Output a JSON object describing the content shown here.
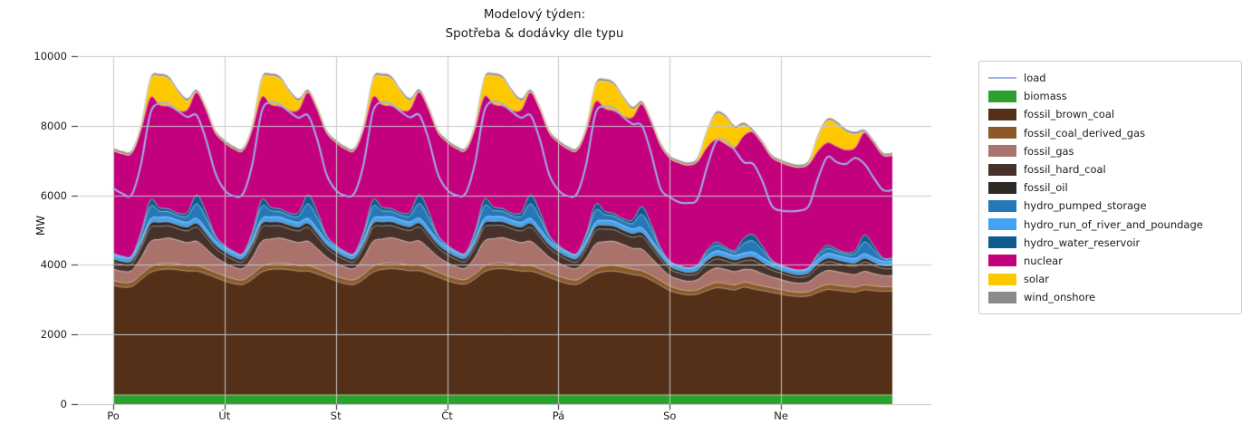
{
  "title": {
    "line1": "Modelový týden:",
    "line2": "Spotřeba & dodávky dle typu"
  },
  "chart_data": {
    "type": "area",
    "stacked": true,
    "title": "Modelový týden: Spotřeba & dodávky dle typu",
    "ylabel": "MW",
    "ylim": [
      0,
      10000
    ],
    "yticks": [
      0,
      2000,
      4000,
      6000,
      8000,
      10000
    ],
    "xtick_hours": [
      0,
      24,
      48,
      72,
      96,
      120,
      144
    ],
    "xtick_labels": [
      "Po",
      "Út",
      "St",
      "Čt",
      "Pá",
      "So",
      "Ne"
    ],
    "x_start_hour": 0,
    "x_step_hours": 2,
    "x_end_hour": 168,
    "grid": true,
    "grid_color": "#c7c7c7",
    "legend_position": "right",
    "stack_order": [
      "biomass",
      "fossil_brown_coal",
      "fossil_coal_derived_gas",
      "fossil_gas",
      "fossil_hard_coal",
      "fossil_oil",
      "hydro_run_of_river_and_poundage",
      "hydro_pumped_storage",
      "hydro_water_reservoir",
      "nuclear",
      "solar",
      "wind_onshore"
    ],
    "load_series": {
      "name": "load",
      "type": "line",
      "color": "#9fb1e8",
      "values": [
        6200,
        6050,
        6020,
        6900,
        8350,
        8650,
        8620,
        8420,
        8250,
        8300,
        7600,
        6650,
        6150,
        5980,
        6050,
        6900,
        8400,
        8680,
        8600,
        8400,
        8230,
        8300,
        7600,
        6600,
        6150,
        5990,
        6060,
        6910,
        8400,
        8670,
        8610,
        8410,
        8240,
        8310,
        7610,
        6610,
        6160,
        6000,
        6060,
        6920,
        8410,
        8690,
        8620,
        8400,
        8230,
        8300,
        7600,
        6600,
        6150,
        5980,
        6050,
        6900,
        8350,
        8550,
        8500,
        8250,
        8050,
        8000,
        7200,
        6200,
        5950,
        5800,
        5780,
        5900,
        6800,
        7550,
        7580,
        7300,
        6950,
        6900,
        6400,
        5700,
        5560,
        5540,
        5560,
        5700,
        6500,
        7100,
        6950,
        6900,
        7080,
        6900,
        6500,
        6150
      ]
    },
    "series": [
      {
        "name": "biomass",
        "color": "#2ca02c",
        "constant": 260,
        "values": null
      },
      {
        "name": "fossil_brown_coal",
        "color": "#553018",
        "values": [
          3150,
          3100,
          3120,
          3320,
          3520,
          3600,
          3620,
          3600,
          3560,
          3560,
          3480,
          3380,
          3280,
          3200,
          3180,
          3330,
          3530,
          3610,
          3620,
          3600,
          3560,
          3560,
          3480,
          3380,
          3280,
          3200,
          3180,
          3330,
          3530,
          3610,
          3630,
          3610,
          3570,
          3570,
          3490,
          3390,
          3290,
          3210,
          3190,
          3340,
          3540,
          3620,
          3630,
          3600,
          3560,
          3560,
          3480,
          3380,
          3280,
          3200,
          3180,
          3320,
          3480,
          3550,
          3560,
          3520,
          3460,
          3420,
          3300,
          3150,
          3000,
          2920,
          2880,
          2900,
          3000,
          3080,
          3060,
          3020,
          3100,
          3050,
          3000,
          2950,
          2900,
          2850,
          2830,
          2850,
          2950,
          3030,
          3010,
          2980,
          2960,
          3020,
          3000,
          2980
        ]
      },
      {
        "name": "fossil_coal_derived_gas",
        "color": "#8c5a28",
        "values": [
          140,
          135,
          130,
          140,
          160,
          170,
          170,
          165,
          160,
          160,
          150,
          145,
          140,
          135,
          130,
          140,
          160,
          170,
          170,
          165,
          160,
          160,
          150,
          145,
          140,
          135,
          130,
          140,
          160,
          170,
          170,
          165,
          160,
          160,
          150,
          145,
          140,
          135,
          130,
          140,
          160,
          170,
          170,
          165,
          160,
          160,
          150,
          145,
          140,
          135,
          130,
          140,
          155,
          165,
          165,
          160,
          155,
          150,
          145,
          138,
          130,
          125,
          120,
          125,
          140,
          150,
          148,
          145,
          140,
          142,
          135,
          130,
          128,
          124,
          120,
          124,
          138,
          148,
          146,
          143,
          140,
          142,
          136,
          130
        ]
      },
      {
        "name": "fossil_gas",
        "color": "#a9736c",
        "values": [
          330,
          320,
          330,
          480,
          720,
          700,
          720,
          680,
          660,
          700,
          580,
          440,
          380,
          340,
          330,
          480,
          720,
          700,
          720,
          680,
          660,
          700,
          580,
          440,
          380,
          340,
          330,
          480,
          720,
          700,
          720,
          680,
          660,
          700,
          580,
          440,
          380,
          340,
          330,
          480,
          720,
          700,
          720,
          680,
          660,
          700,
          580,
          440,
          380,
          340,
          330,
          470,
          700,
          690,
          690,
          640,
          600,
          620,
          500,
          380,
          300,
          280,
          270,
          290,
          380,
          420,
          400,
          380,
          370,
          400,
          350,
          310,
          290,
          270,
          260,
          280,
          360,
          400,
          390,
          370,
          360,
          390,
          350,
          320
        ]
      },
      {
        "name": "fossil_hard_coal",
        "color": "#46322a",
        "values": [
          200,
          195,
          195,
          290,
          400,
          380,
          350,
          330,
          340,
          400,
          330,
          260,
          230,
          210,
          200,
          290,
          400,
          380,
          350,
          330,
          340,
          400,
          330,
          260,
          230,
          210,
          200,
          290,
          400,
          380,
          350,
          330,
          340,
          400,
          330,
          260,
          230,
          210,
          200,
          290,
          400,
          380,
          350,
          330,
          340,
          400,
          330,
          260,
          230,
          210,
          200,
          280,
          380,
          360,
          330,
          310,
          320,
          370,
          300,
          230,
          190,
          180,
          175,
          185,
          240,
          260,
          250,
          240,
          245,
          280,
          240,
          200,
          185,
          175,
          170,
          180,
          235,
          255,
          245,
          235,
          240,
          275,
          240,
          205
        ]
      },
      {
        "name": "fossil_oil",
        "color": "#2d2a26",
        "values": [
          90,
          85,
          85,
          100,
          115,
          115,
          110,
          108,
          110,
          115,
          105,
          95,
          90,
          85,
          85,
          100,
          115,
          115,
          110,
          108,
          110,
          115,
          105,
          95,
          90,
          85,
          85,
          100,
          115,
          115,
          110,
          108,
          110,
          115,
          105,
          95,
          90,
          85,
          85,
          100,
          115,
          115,
          110,
          108,
          110,
          115,
          105,
          95,
          90,
          85,
          85,
          98,
          112,
          112,
          108,
          105,
          106,
          110,
          100,
          90,
          80,
          78,
          76,
          80,
          95,
          100,
          98,
          95,
          96,
          100,
          92,
          85,
          80,
          77,
          75,
          79,
          94,
          99,
          97,
          94,
          96,
          100,
          92,
          86
        ]
      },
      {
        "name": "hydro_run_of_river_and_poundage",
        "color": "#45a2f2",
        "values": [
          120,
          118,
          116,
          122,
          135,
          140,
          138,
          134,
          132,
          138,
          130,
          124,
          120,
          118,
          116,
          122,
          135,
          140,
          138,
          134,
          132,
          138,
          130,
          124,
          120,
          118,
          116,
          122,
          135,
          140,
          138,
          134,
          132,
          138,
          130,
          124,
          120,
          118,
          116,
          122,
          135,
          140,
          138,
          134,
          132,
          138,
          130,
          124,
          120,
          118,
          116,
          122,
          135,
          140,
          138,
          134,
          132,
          138,
          130,
          124,
          118,
          116,
          114,
          118,
          128,
          132,
          130,
          128,
          127,
          132,
          126,
          122,
          118,
          116,
          114,
          118,
          128,
          132,
          130,
          128,
          127,
          132,
          126,
          122
        ]
      },
      {
        "name": "hydro_pumped_storage",
        "color": "#2578b7",
        "values": [
          30,
          25,
          25,
          160,
          360,
          180,
          160,
          140,
          180,
          420,
          320,
          110,
          50,
          30,
          30,
          160,
          360,
          180,
          160,
          140,
          180,
          420,
          320,
          110,
          50,
          30,
          30,
          160,
          360,
          180,
          160,
          140,
          180,
          420,
          320,
          110,
          50,
          30,
          30,
          160,
          360,
          180,
          160,
          140,
          180,
          420,
          320,
          110,
          50,
          30,
          30,
          150,
          340,
          170,
          150,
          130,
          160,
          380,
          280,
          90,
          30,
          20,
          20,
          40,
          120,
          160,
          120,
          100,
          280,
          320,
          220,
          60,
          25,
          20,
          20,
          35,
          110,
          150,
          115,
          95,
          150,
          340,
          230,
          70
        ]
      },
      {
        "name": "hydro_water_reservoir",
        "color": "#0d5c8d",
        "values": [
          15,
          10,
          10,
          70,
          190,
          100,
          80,
          70,
          110,
          260,
          170,
          40,
          20,
          10,
          10,
          70,
          190,
          100,
          80,
          70,
          110,
          260,
          170,
          40,
          20,
          10,
          10,
          70,
          190,
          100,
          80,
          70,
          110,
          260,
          170,
          40,
          20,
          10,
          10,
          70,
          190,
          100,
          80,
          70,
          110,
          260,
          170,
          40,
          20,
          10,
          10,
          65,
          180,
          95,
          75,
          65,
          100,
          230,
          150,
          35,
          10,
          8,
          8,
          15,
          60,
          90,
          60,
          50,
          150,
          180,
          110,
          25,
          10,
          8,
          8,
          15,
          55,
          85,
          60,
          50,
          90,
          200,
          120,
          30
        ]
      },
      {
        "name": "nuclear",
        "color": "#c4017d",
        "constant": 2950,
        "values": null
      },
      {
        "name": "solar",
        "color": "#fdc800",
        "values": [
          0,
          0,
          0,
          60,
          480,
          820,
          780,
          520,
          250,
          0,
          0,
          0,
          0,
          0,
          0,
          60,
          480,
          820,
          780,
          520,
          250,
          0,
          0,
          0,
          0,
          0,
          0,
          60,
          480,
          820,
          780,
          520,
          250,
          0,
          0,
          0,
          0,
          0,
          0,
          60,
          480,
          820,
          780,
          520,
          250,
          0,
          0,
          0,
          0,
          0,
          0,
          55,
          450,
          780,
          740,
          500,
          230,
          0,
          0,
          0,
          0,
          0,
          0,
          50,
          420,
          720,
          760,
          560,
          300,
          0,
          0,
          0,
          0,
          0,
          0,
          50,
          400,
          620,
          650,
          520,
          380,
          0,
          0,
          0
        ]
      },
      {
        "name": "wind_onshore",
        "color": "#8b8b8b",
        "constant": 70,
        "values": null
      }
    ]
  },
  "legend": {
    "entries": [
      {
        "series": "load",
        "label": "load",
        "swatch": "line"
      },
      {
        "series": "biomass",
        "label": "biomass",
        "swatch": "patch"
      },
      {
        "series": "fossil_brown_coal",
        "label": "fossil_brown_coal",
        "swatch": "patch"
      },
      {
        "series": "fossil_coal_derived_gas",
        "label": "fossil_coal_derived_gas",
        "swatch": "patch"
      },
      {
        "series": "fossil_gas",
        "label": "fossil_gas",
        "swatch": "patch"
      },
      {
        "series": "fossil_hard_coal",
        "label": "fossil_hard_coal",
        "swatch": "patch"
      },
      {
        "series": "fossil_oil",
        "label": "fossil_oil",
        "swatch": "patch"
      },
      {
        "series": "hydro_pumped_storage",
        "label": "hydro_pumped_storage",
        "swatch": "patch"
      },
      {
        "series": "hydro_run_of_river_and_poundage",
        "label": "hydro_run_of_river_and_poundage",
        "swatch": "patch"
      },
      {
        "series": "hydro_water_reservoir",
        "label": "hydro_water_reservoir",
        "swatch": "patch"
      },
      {
        "series": "nuclear",
        "label": "nuclear",
        "swatch": "patch"
      },
      {
        "series": "solar",
        "label": "solar",
        "swatch": "patch"
      },
      {
        "series": "wind_onshore",
        "label": "wind_onshore",
        "swatch": "patch"
      }
    ]
  },
  "colors": {
    "background": "#ffffff",
    "grid": "#c7c7c7",
    "tick": "#262626",
    "legend_border": "#cccccc"
  }
}
